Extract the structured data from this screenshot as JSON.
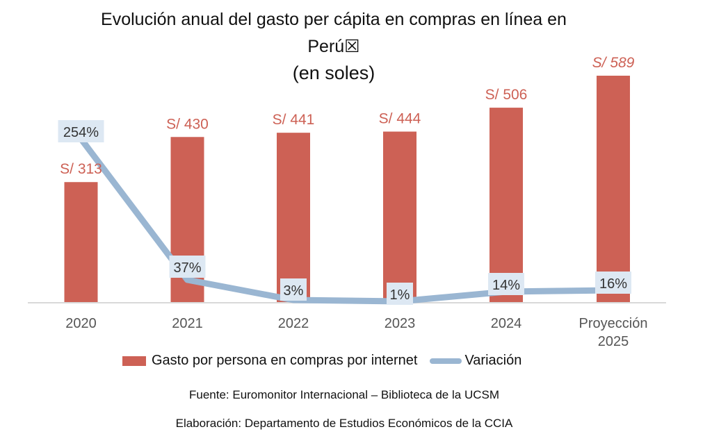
{
  "chart_data": {
    "type": "bar",
    "title": "Evolución anual del gasto per cápita en compras en línea en Perú",
    "title_line2": "Perú☒",
    "subtitle": "(en soles)",
    "categories": [
      "2020",
      "2021",
      "2022",
      "2023",
      "2024",
      "Proyección 2025"
    ],
    "category_lines": [
      [
        "2020"
      ],
      [
        "2021"
      ],
      [
        "2022"
      ],
      [
        "2023"
      ],
      [
        "2024"
      ],
      [
        "Proyección",
        "2025"
      ]
    ],
    "series": [
      {
        "name": "Gasto por persona en compras por internet",
        "type": "bar",
        "values": [
          313,
          430,
          441,
          444,
          506,
          589
        ],
        "labels": [
          "S/ 313",
          "S/ 430",
          "S/ 441",
          "S/ 444",
          "S/ 506",
          "S/ 589"
        ],
        "color": "#cd6155",
        "label_color": "#cd6155"
      },
      {
        "name": "Variación",
        "type": "line",
        "values": [
          254,
          37,
          3,
          1,
          14,
          16
        ],
        "labels": [
          "254%",
          "37%",
          "3%",
          "1%",
          "14%",
          "16%"
        ],
        "color": "#9ab6d2"
      }
    ],
    "ylim": [
      0,
      589
    ],
    "grid": false,
    "legend": "bottom"
  },
  "title_line1": "Evolución anual del gasto per cápita en compras en línea en",
  "legend": {
    "bar_label": "Gasto por persona en compras por internet",
    "line_label": "Variación"
  },
  "footer": {
    "source": "Fuente: Euromonitor Internacional – Biblioteca de la UCSM",
    "elaboration": "Elaboración: Departamento de Estudios Económicos de la CCIA"
  }
}
